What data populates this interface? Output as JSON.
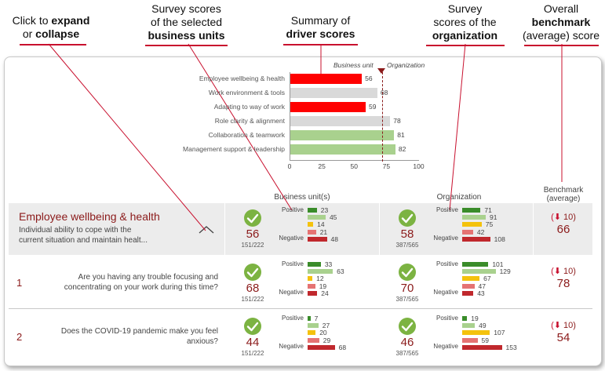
{
  "callouts": {
    "expand": {
      "line1_pre": "Click to ",
      "line1_bold": "expand",
      "line2_pre": "or ",
      "line2_bold": "collapse"
    },
    "business": {
      "line1": "Survey scores",
      "line2": "of the selected",
      "line3_bold": "business units"
    },
    "summary": {
      "line1": "Summary of",
      "line2_bold": "driver scores"
    },
    "organization": {
      "line1": "Survey",
      "line2": "scores of the",
      "line3_bold": "organization"
    },
    "benchmark": {
      "line1": "Overall",
      "line2_bold": "benchmark",
      "line3": "(average) score"
    }
  },
  "driver_chart": {
    "legend_business": "Business unit",
    "legend_org": "Organization",
    "drivers": [
      {
        "label": "Employee wellbeing & health",
        "value": 56,
        "color": "#ff0000"
      },
      {
        "label": "Work environment & tools",
        "value": 68,
        "color": "#d9d9d9"
      },
      {
        "label": "Adapting to way of work",
        "value": 59,
        "color": "#ff0000"
      },
      {
        "label": "Role clarity & alignment",
        "value": 78,
        "color": "#d9d9d9"
      },
      {
        "label": "Collaboration & teamwork",
        "value": 81,
        "color": "#a9d18e"
      },
      {
        "label": "Management support & leadership",
        "value": 82,
        "color": "#a9d18e"
      }
    ],
    "org_marker": 72,
    "axis_ticks": [
      "0",
      "25",
      "50",
      "75",
      "100"
    ]
  },
  "columns": {
    "business": "Business unit(s)",
    "organization": "Organization",
    "benchmark_line1": "Benchmark",
    "benchmark_line2": "(average)"
  },
  "bar_labels": {
    "positive": "Positive",
    "negative": "Negative"
  },
  "colors": {
    "green_dark": "#3a8c2a",
    "green_light": "#a9d18e",
    "yellow": "#f4c20d",
    "salmon": "#e57373",
    "red": "#c0282d",
    "accent": "#8b1a1a"
  },
  "summary_row": {
    "title": "Employee wellbeing & health",
    "desc_line1": "Individual ability to cope with the",
    "desc_line2": "current situation and maintain healt...",
    "business": {
      "score": "56",
      "count": "151/222",
      "bars": [
        23,
        45,
        14,
        21,
        48
      ]
    },
    "organization": {
      "score": "58",
      "count": "387/565",
      "bars": [
        71,
        91,
        75,
        42,
        108
      ]
    },
    "benchmark": {
      "delta": "10",
      "score": "66"
    }
  },
  "questions": [
    {
      "num": "1",
      "text_line1": "Are you having any trouble focusing and",
      "text_line2": "concentrating on your work during this time?",
      "business": {
        "score": "68",
        "count": "151/222",
        "bars": [
          33,
          63,
          12,
          19,
          24
        ]
      },
      "organization": {
        "score": "70",
        "count": "387/565",
        "bars": [
          101,
          129,
          67,
          47,
          43
        ]
      },
      "benchmark": {
        "delta": "10",
        "score": "78"
      }
    },
    {
      "num": "2",
      "text_line1": "Does the COVID-19 pandemic make you feel",
      "text_line2": "anxious?",
      "business": {
        "score": "44",
        "count": "151/222",
        "bars": [
          7,
          27,
          20,
          29,
          68
        ]
      },
      "organization": {
        "score": "46",
        "count": "387/565",
        "bars": [
          19,
          49,
          107,
          59,
          153
        ]
      },
      "benchmark": {
        "delta": "10",
        "score": "54"
      }
    }
  ]
}
